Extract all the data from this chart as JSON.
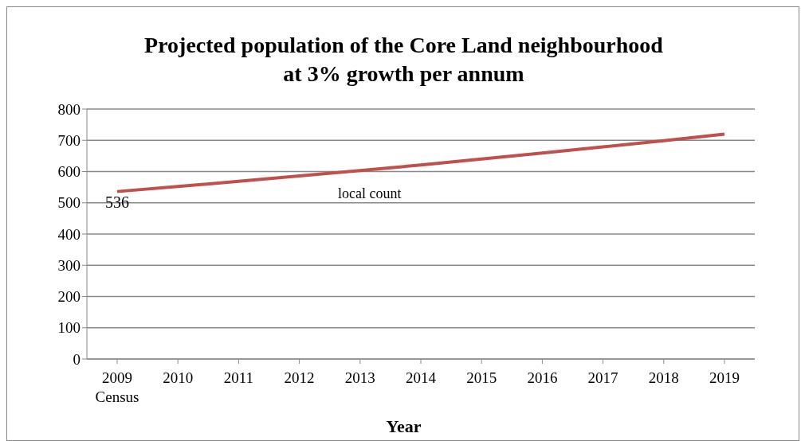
{
  "chart_data": {
    "type": "line",
    "title": "Projected population of the Core Land neighbourhood\nat 3% growth per annum",
    "xlabel": "Year",
    "categories": [
      "2009 Census",
      "2010",
      "2011",
      "2012",
      "2013",
      "2014",
      "2015",
      "2016",
      "2017",
      "2018",
      "2019"
    ],
    "series": [
      {
        "color": "#c0504d",
        "values": [
          536,
          552,
          569,
          586,
          603,
          621,
          640,
          659,
          679,
          699,
          720
        ]
      }
    ],
    "ylim": [
      0,
      800
    ],
    "yticks": [
      0,
      100,
      200,
      300,
      400,
      500,
      600,
      700,
      800
    ],
    "grid": "y",
    "marker": "none",
    "line_style": "solid",
    "annotations": [
      {
        "text": "536",
        "x": "2009 Census",
        "y": 536
      },
      "local count"
    ]
  }
}
